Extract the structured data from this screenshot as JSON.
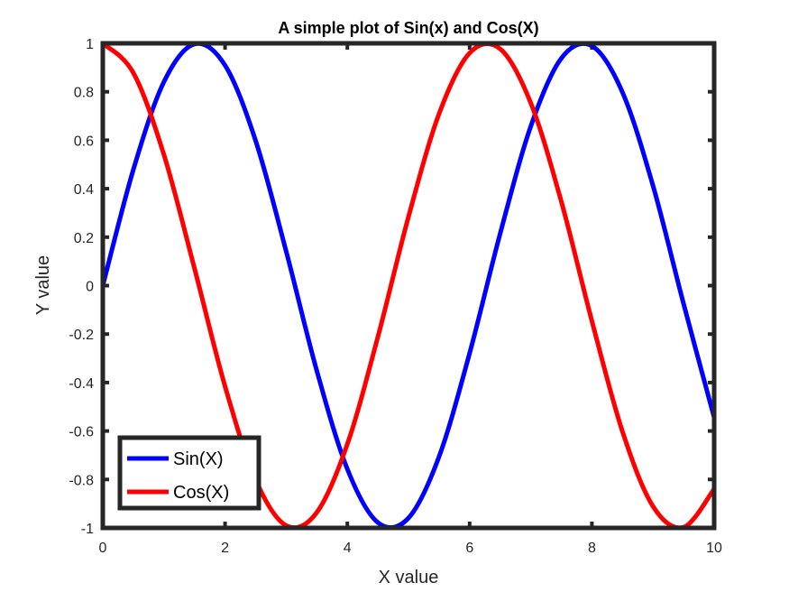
{
  "chart_data": {
    "type": "line",
    "title": "A simple plot of Sin(x) and Cos(X)",
    "xlabel": "X value",
    "ylabel": "Y value",
    "xlim": [
      0,
      10
    ],
    "ylim": [
      -1,
      1
    ],
    "x_ticks": [
      "0",
      "2",
      "4",
      "6",
      "8",
      "10"
    ],
    "y_ticks": [
      "-1",
      "-0.8",
      "-0.6",
      "-0.4",
      "-0.2",
      "0",
      "0.2",
      "0.4",
      "0.6",
      "0.8",
      "1"
    ],
    "grid": false,
    "legend_placement": "bottom-left",
    "x": [
      0,
      0.5,
      1,
      1.5,
      2,
      2.5,
      3,
      3.5,
      4,
      4.5,
      5,
      5.5,
      6,
      6.5,
      7,
      7.5,
      8,
      8.5,
      9,
      9.5,
      10
    ],
    "series": [
      {
        "name": "Sin(X)",
        "color": "#0000ff",
        "values": [
          0,
          0.479,
          0.841,
          0.997,
          0.909,
          0.598,
          0.141,
          -0.351,
          -0.757,
          -0.978,
          -0.959,
          -0.706,
          -0.279,
          0.215,
          0.657,
          0.938,
          0.989,
          0.798,
          0.412,
          -0.075,
          -0.544
        ]
      },
      {
        "name": "Cos(X)",
        "color": "#ff0000",
        "values": [
          1,
          0.878,
          0.54,
          0.071,
          -0.416,
          -0.801,
          -0.99,
          -0.936,
          -0.654,
          -0.211,
          0.284,
          0.709,
          0.96,
          0.977,
          0.754,
          0.347,
          -0.146,
          -0.602,
          -0.911,
          -0.997,
          -0.839
        ]
      }
    ]
  }
}
